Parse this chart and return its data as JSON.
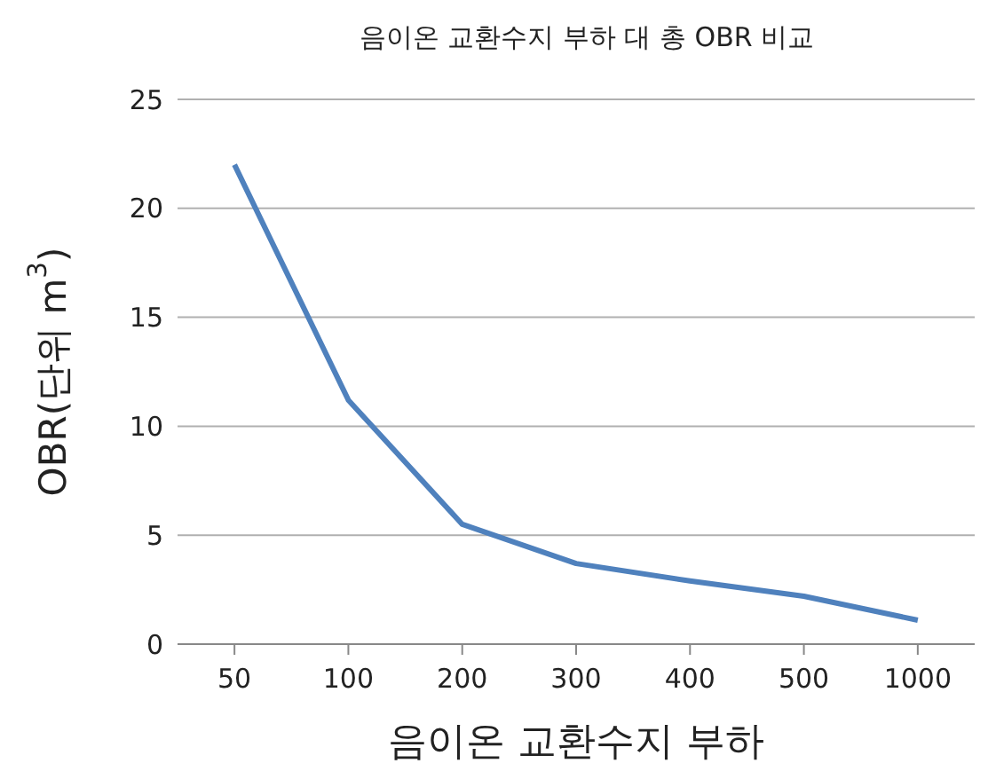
{
  "chart_data": {
    "type": "line",
    "title": "음이온 교환수지 부하 대 총 OBR 비교",
    "xlabel": "음이온 교환수지 부하",
    "ylabel": "OBR(단위 m$^{3}$)",
    "categories": [
      "50",
      "100",
      "200",
      "300",
      "400",
      "500",
      "1000"
    ],
    "series": [
      {
        "color": "#4f81bd",
        "values": [
          22,
          11.2,
          5.5,
          3.7,
          2.9,
          2.2,
          1.1
        ]
      }
    ],
    "ylim": [
      0,
      25
    ],
    "yticks": [
      0,
      5,
      10,
      15,
      20,
      25
    ],
    "grid": "y",
    "marker": "none",
    "line_style": "solid"
  }
}
